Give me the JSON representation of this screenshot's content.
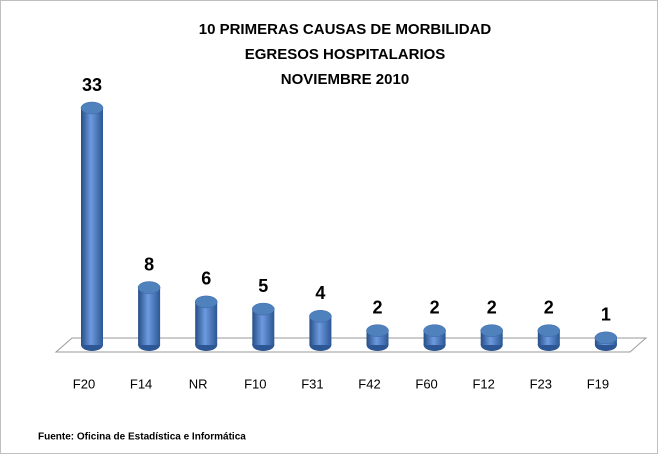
{
  "chart_data": {
    "type": "bar",
    "title": [
      "10 PRIMERAS CAUSAS DE MORBILIDAD",
      "EGRESOS HOSPITALARIOS",
      "NOVIEMBRE 2010"
    ],
    "categories": [
      "F20",
      "F14",
      "NR",
      "F10",
      "F31",
      "F42",
      "F60",
      "F12",
      "F23",
      "F19"
    ],
    "values": [
      33,
      8,
      6,
      5,
      4,
      2,
      2,
      2,
      2,
      1
    ],
    "color": "#4f81bd",
    "source": "Fuente: Oficina de Estadística e Informática"
  }
}
